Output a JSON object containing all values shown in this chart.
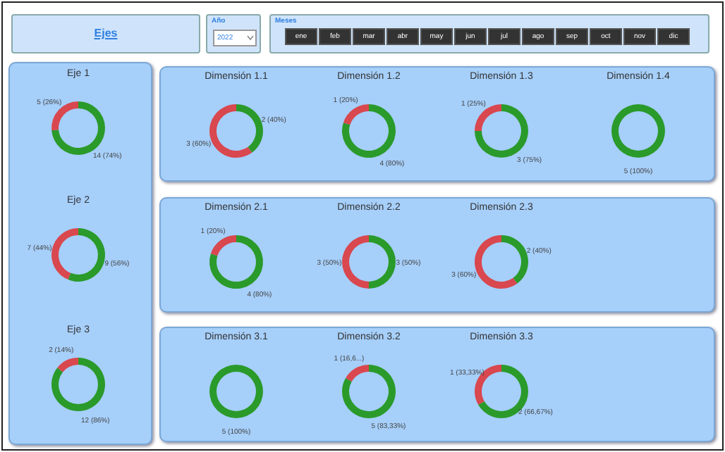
{
  "chart_data": [
    {
      "type": "other",
      "title": "Ejes"
    },
    {
      "type": "other",
      "title": "Año",
      "annotations": [
        "2022"
      ]
    },
    {
      "type": "other",
      "title": "Meses",
      "annotations": [
        "ene",
        "feb",
        "mar",
        "abr",
        "may",
        "jun",
        "jul",
        "ago",
        "sep",
        "oct",
        "nov",
        "dic"
      ]
    },
    {
      "type": "donut",
      "title": "Eje 1",
      "categories": [
        null,
        null
      ],
      "values": [
        14,
        5
      ],
      "colors": [
        "#2a9a2a",
        "#d9474f"
      ],
      "value_labels": [
        "14 (74%)",
        "5 (26%)"
      ]
    },
    {
      "type": "donut",
      "title": "Eje 2",
      "categories": [
        null,
        null
      ],
      "values": [
        9,
        7
      ],
      "colors": [
        "#2a9a2a",
        "#d9474f"
      ],
      "value_labels": [
        "9 (56%)",
        "7 (44%)"
      ]
    },
    {
      "type": "donut",
      "title": "Eje 3",
      "categories": [
        null,
        null
      ],
      "values": [
        12,
        2
      ],
      "colors": [
        "#2a9a2a",
        "#d9474f"
      ],
      "value_labels": [
        "12 (86%)",
        "2 (14%)"
      ]
    },
    {
      "type": "donut",
      "title": "Dimensión 1.1",
      "categories": [
        null,
        null
      ],
      "values": [
        2,
        3
      ],
      "colors": [
        "#2a9a2a",
        "#d9474f"
      ],
      "value_labels": [
        "2 (40%)",
        "3 (60%)"
      ]
    },
    {
      "type": "donut",
      "title": "Dimensión 1.2",
      "categories": [
        null,
        null
      ],
      "values": [
        4,
        1
      ],
      "colors": [
        "#2a9a2a",
        "#d9474f"
      ],
      "value_labels": [
        "4 (80%)",
        "1 (20%)"
      ]
    },
    {
      "type": "donut",
      "title": "Dimensión 1.3",
      "categories": [
        null,
        null
      ],
      "values": [
        3,
        1
      ],
      "colors": [
        "#2a9a2a",
        "#d9474f"
      ],
      "value_labels": [
        "3 (75%)",
        "1 (25%)"
      ]
    },
    {
      "type": "donut",
      "title": "Dimensión 1.4",
      "categories": [
        null
      ],
      "values": [
        5
      ],
      "colors": [
        "#2a9a2a"
      ],
      "value_labels": [
        "5 (100%)"
      ]
    },
    {
      "type": "donut",
      "title": "Dimensión 2.1",
      "categories": [
        null,
        null
      ],
      "values": [
        4,
        1
      ],
      "colors": [
        "#2a9a2a",
        "#d9474f"
      ],
      "value_labels": [
        "4 (80%)",
        "1 (20%)"
      ]
    },
    {
      "type": "donut",
      "title": "Dimensión 2.2",
      "categories": [
        null,
        null
      ],
      "values": [
        3,
        3
      ],
      "colors": [
        "#2a9a2a",
        "#d9474f"
      ],
      "value_labels": [
        "3 (50%)",
        "3 (50%)"
      ]
    },
    {
      "type": "donut",
      "title": "Dimensión 2.3",
      "categories": [
        null,
        null
      ],
      "values": [
        2,
        3
      ],
      "colors": [
        "#2a9a2a",
        "#d9474f"
      ],
      "value_labels": [
        "2 (40%)",
        "3 (60%)"
      ]
    },
    {
      "type": "donut",
      "title": "Dimensión 3.1",
      "categories": [
        null
      ],
      "values": [
        5
      ],
      "colors": [
        "#2a9a2a"
      ],
      "value_labels": [
        "5 (100%)"
      ]
    },
    {
      "type": "donut",
      "title": "Dimensión 3.2",
      "categories": [
        null,
        null
      ],
      "values": [
        5,
        1
      ],
      "colors": [
        "#2a9a2a",
        "#d9474f"
      ],
      "value_labels": [
        "5 (83,33%)",
        "1 (16,6...)"
      ]
    },
    {
      "type": "donut",
      "title": "Dimensión 3.3",
      "categories": [
        null,
        null
      ],
      "values": [
        2,
        1
      ],
      "colors": [
        "#2a9a2a",
        "#d9474f"
      ],
      "value_labels": [
        "2 (66,67%)",
        "1 (33,33%)"
      ]
    }
  ]
}
